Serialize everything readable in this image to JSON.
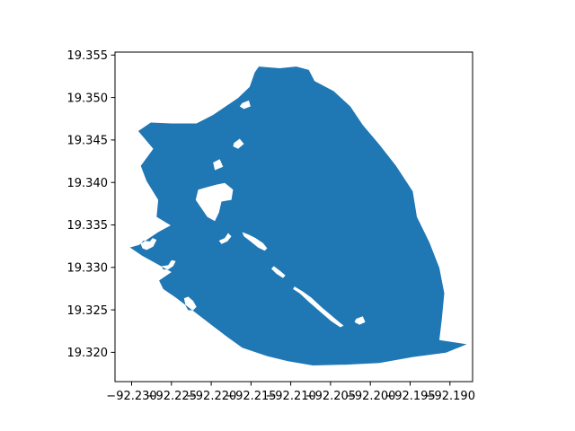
{
  "map": {
    "fill_color": "#1f77b4",
    "background": "#ffffff",
    "x_ticks": [
      "−92.230",
      "−92.225",
      "−92.220",
      "−92.215",
      "−92.210",
      "−92.205",
      "−92.200",
      "−92.195",
      "−92.190"
    ],
    "y_ticks": [
      "19.355",
      "19.350",
      "19.345",
      "19.340",
      "19.335",
      "19.330",
      "19.325",
      "19.320"
    ]
  },
  "chart_data": {
    "type": "map",
    "xlim": [
      -92.2318,
      -92.1888
    ],
    "ylim": [
      19.3166,
      19.3554
    ],
    "x_tick_values": [
      -92.23,
      -92.225,
      -92.22,
      -92.215,
      -92.21,
      -92.205,
      -92.2,
      -92.195,
      -92.19
    ],
    "y_tick_values": [
      19.355,
      19.35,
      19.345,
      19.34,
      19.335,
      19.33,
      19.325,
      19.32
    ],
    "region_outline": [
      [
        -92.23,
        19.3324
      ],
      [
        -92.2289,
        19.3327
      ],
      [
        -92.2266,
        19.3342
      ],
      [
        -92.2251,
        19.335
      ],
      [
        -92.2268,
        19.336
      ],
      [
        -92.2266,
        19.338
      ],
      [
        -92.228,
        19.3402
      ],
      [
        -92.2287,
        19.342
      ],
      [
        -92.2272,
        19.344
      ],
      [
        -92.229,
        19.3461
      ],
      [
        -92.2275,
        19.3471
      ],
      [
        -92.225,
        19.347
      ],
      [
        -92.222,
        19.347
      ],
      [
        -92.22,
        19.348
      ],
      [
        -92.217,
        19.35
      ],
      [
        -92.2156,
        19.3513
      ],
      [
        -92.215,
        19.353
      ],
      [
        -92.2145,
        19.3537
      ],
      [
        -92.212,
        19.3535
      ],
      [
        -92.21,
        19.3537
      ],
      [
        -92.2085,
        19.3533
      ],
      [
        -92.2078,
        19.352
      ],
      [
        -92.2055,
        19.3508
      ],
      [
        -92.2035,
        19.349
      ],
      [
        -92.202,
        19.3468
      ],
      [
        -92.2,
        19.3445
      ],
      [
        -92.198,
        19.342
      ],
      [
        -92.196,
        19.339
      ],
      [
        -92.1955,
        19.336
      ],
      [
        -92.194,
        19.333
      ],
      [
        -92.1928,
        19.33
      ],
      [
        -92.1922,
        19.327
      ],
      [
        -92.1925,
        19.324
      ],
      [
        -92.1928,
        19.3215
      ],
      [
        -92.1895,
        19.321
      ],
      [
        -92.192,
        19.32
      ],
      [
        -92.196,
        19.3195
      ],
      [
        -92.2,
        19.3188
      ],
      [
        -92.204,
        19.3186
      ],
      [
        -92.208,
        19.3185
      ],
      [
        -92.211,
        19.319
      ],
      [
        -92.2135,
        19.3196
      ],
      [
        -92.2165,
        19.3206
      ],
      [
        -92.2185,
        19.322
      ],
      [
        -92.2205,
        19.3235
      ],
      [
        -92.2225,
        19.325
      ],
      [
        -92.2245,
        19.3265
      ],
      [
        -92.226,
        19.3275
      ],
      [
        -92.2265,
        19.3285
      ],
      [
        -92.225,
        19.3295
      ],
      [
        -92.227,
        19.3306
      ],
      [
        -92.2285,
        19.3314
      ]
    ],
    "holes": [
      [
        [
          -92.219,
          19.3378
        ],
        [
          -92.2178,
          19.338
        ],
        [
          -92.2176,
          19.3392
        ],
        [
          -92.2186,
          19.34
        ],
        [
          -92.2196,
          19.3398
        ],
        [
          -92.2207,
          19.3395
        ],
        [
          -92.2218,
          19.3392
        ],
        [
          -92.2221,
          19.338
        ],
        [
          -92.2207,
          19.336
        ],
        [
          -92.2198,
          19.3355
        ],
        [
          -92.2193,
          19.3365
        ]
      ],
      [
        [
          -92.2198,
          19.3415
        ],
        [
          -92.2188,
          19.3419
        ],
        [
          -92.2192,
          19.3428
        ],
        [
          -92.22,
          19.3424
        ]
      ],
      [
        [
          -92.2165,
          19.3342
        ],
        [
          -92.2157,
          19.3339
        ],
        [
          -92.2149,
          19.3335
        ],
        [
          -92.214,
          19.3329
        ],
        [
          -92.2135,
          19.3323
        ],
        [
          -92.2138,
          19.332
        ],
        [
          -92.2146,
          19.3324
        ],
        [
          -92.2155,
          19.3331
        ],
        [
          -92.2163,
          19.3337
        ]
      ],
      [
        [
          -92.2127,
          19.3302
        ],
        [
          -92.2119,
          19.3296
        ],
        [
          -92.2113,
          19.3291
        ],
        [
          -92.2116,
          19.3288
        ],
        [
          -92.2124,
          19.3293
        ],
        [
          -92.213,
          19.3299
        ]
      ],
      [
        [
          -92.2102,
          19.3278
        ],
        [
          -92.2092,
          19.3272
        ],
        [
          -92.2082,
          19.3265
        ],
        [
          -92.207,
          19.3254
        ],
        [
          -92.2058,
          19.3244
        ],
        [
          -92.2047,
          19.3235
        ],
        [
          -92.2043,
          19.3232
        ],
        [
          -92.2047,
          19.323
        ],
        [
          -92.2058,
          19.3237
        ],
        [
          -92.2071,
          19.3248
        ],
        [
          -92.2085,
          19.326
        ],
        [
          -92.2096,
          19.327
        ],
        [
          -92.2104,
          19.3275
        ]
      ],
      [
        [
          -92.222,
          19.3254
        ],
        [
          -92.2224,
          19.3261
        ],
        [
          -92.223,
          19.3266
        ],
        [
          -92.2235,
          19.3264
        ],
        [
          -92.2233,
          19.3255
        ],
        [
          -92.223,
          19.325
        ],
        [
          -92.2224,
          19.325
        ]
      ],
      [
        [
          -92.2287,
          19.3328
        ],
        [
          -92.2284,
          19.3332
        ],
        [
          -92.2276,
          19.3331
        ],
        [
          -92.2273,
          19.3335
        ],
        [
          -92.2268,
          19.3333
        ],
        [
          -92.2272,
          19.3325
        ],
        [
          -92.228,
          19.3321
        ],
        [
          -92.2285,
          19.3323
        ]
      ],
      [
        [
          -92.2193,
          19.3332
        ],
        [
          -92.2186,
          19.3335
        ],
        [
          -92.2182,
          19.3341
        ],
        [
          -92.2178,
          19.3337
        ],
        [
          -92.2183,
          19.3331
        ],
        [
          -92.219,
          19.3328
        ]
      ],
      [
        [
          -92.2262,
          19.3302
        ],
        [
          -92.2254,
          19.3303
        ],
        [
          -92.225,
          19.3309
        ],
        [
          -92.2245,
          19.3308
        ],
        [
          -92.2248,
          19.3302
        ],
        [
          -92.2254,
          19.3298
        ],
        [
          -92.226,
          19.3298
        ]
      ],
      [
        [
          -92.2165,
          19.3494
        ],
        [
          -92.2157,
          19.3497
        ],
        [
          -92.2155,
          19.349
        ],
        [
          -92.2163,
          19.3487
        ],
        [
          -92.2168,
          19.349
        ]
      ],
      [
        [
          -92.2175,
          19.3447
        ],
        [
          -92.2168,
          19.3452
        ],
        [
          -92.2163,
          19.3446
        ],
        [
          -92.217,
          19.344
        ],
        [
          -92.2176,
          19.3443
        ]
      ],
      [
        [
          -92.2028,
          19.324
        ],
        [
          -92.202,
          19.3243
        ],
        [
          -92.2017,
          19.3236
        ],
        [
          -92.2024,
          19.3233
        ],
        [
          -92.203,
          19.3236
        ]
      ]
    ]
  }
}
